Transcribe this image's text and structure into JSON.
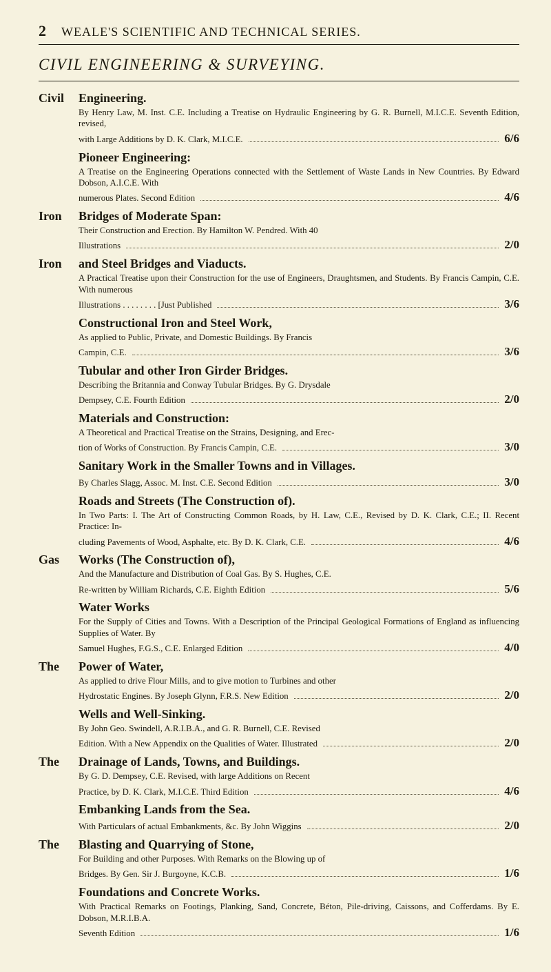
{
  "page_number": "2",
  "running_head": "WEALE'S SCIENTIFIC AND TECHNICAL SERIES.",
  "section_heading": "CIVIL ENGINEERING & SURVEYING.",
  "entries": [
    {
      "lead": "Civil",
      "title": "Engineering.",
      "desc_pre": "By Henry Law, M. Inst. C.E. Including a Treatise on Hydraulic Engineering by G. R. Burnell, M.I.C.E. Seventh Edition, revised,",
      "desc_last": "with Large Additions by D. K. Clark, M.I.C.E.",
      "price": "6/6"
    },
    {
      "lead": "",
      "title": "Pioneer Engineering:",
      "desc_pre": "A Treatise on the Engineering Operations connected with the Settlement of Waste Lands in New Countries. By Edward Dobson, A.I.C.E. With",
      "desc_last": "numerous Plates. Second Edition",
      "price": "4/6"
    },
    {
      "lead": "Iron",
      "title": "Bridges of Moderate Span:",
      "desc_pre": "Their Construction and Erection. By Hamilton W. Pendred. With 40",
      "desc_last": "Illustrations",
      "price": "2/0"
    },
    {
      "lead": "Iron",
      "title": "and Steel Bridges and Viaducts.",
      "desc_pre": "A Practical Treatise upon their Construction for the use of Engineers, Draughtsmen, and Students. By Francis Campin, C.E. With numerous",
      "desc_last": "Illustrations . . . . . . . . [Just Published",
      "price": "3/6"
    },
    {
      "lead": "",
      "title": "Constructional Iron and Steel Work,",
      "desc_pre": "As applied to Public, Private, and Domestic Buildings. By Francis",
      "desc_last": "Campin, C.E.",
      "price": "3/6"
    },
    {
      "lead": "",
      "title": "Tubular and other Iron Girder Bridges.",
      "desc_pre": "Describing the Britannia and Conway Tubular Bridges. By G. Drysdale",
      "desc_last": "Dempsey, C.E. Fourth Edition",
      "price": "2/0"
    },
    {
      "lead": "",
      "title": "Materials and Construction:",
      "desc_pre": "A Theoretical and Practical Treatise on the Strains, Designing, and Erec-",
      "desc_last": "tion of Works of Construction. By Francis Campin, C.E.",
      "price": "3/0"
    },
    {
      "lead": "",
      "title": "Sanitary Work in the Smaller Towns and in Villages.",
      "desc_pre": "",
      "desc_last": "By Charles Slagg, Assoc. M. Inst. C.E. Second Edition",
      "price": "3/0"
    },
    {
      "lead": "",
      "title": "Roads and Streets (The Construction of).",
      "desc_pre": "In Two Parts: I. The Art of Constructing Common Roads, by H. Law, C.E., Revised by D. K. Clark, C.E.; II. Recent Practice: In-",
      "desc_last": "cluding Pavements of Wood, Asphalte, etc. By D. K. Clark, C.E.",
      "price": "4/6"
    },
    {
      "lead": "Gas",
      "title": "Works (The Construction of),",
      "desc_pre": "And the Manufacture and Distribution of Coal Gas. By S. Hughes, C.E.",
      "desc_last": "Re-written by William Richards, C.E. Eighth Edition",
      "price": "5/6"
    },
    {
      "lead": "",
      "title": "Water Works",
      "desc_pre": "For the Supply of Cities and Towns. With a Description of the Principal Geological Formations of England as influencing Supplies of Water. By",
      "desc_last": "Samuel Hughes, F.G.S., C.E. Enlarged Edition",
      "price": "4/0"
    },
    {
      "lead": "The",
      "title": "Power of Water,",
      "desc_pre": "As applied to drive Flour Mills, and to give motion to Turbines and other",
      "desc_last": "Hydrostatic Engines. By Joseph Glynn, F.R.S. New Edition",
      "price": "2/0"
    },
    {
      "lead": "",
      "title": "Wells and Well-Sinking.",
      "desc_pre": "By John Geo. Swindell, A.R.I.B.A., and G. R. Burnell, C.E. Revised",
      "desc_last": "Edition. With a New Appendix on the Qualities of Water. Illustrated",
      "price": "2/0"
    },
    {
      "lead": "The",
      "title": "Drainage of Lands, Towns, and Buildings.",
      "desc_pre": "By G. D. Dempsey, C.E. Revised, with large Additions on Recent",
      "desc_last": "Practice, by D. K. Clark, M.I.C.E. Third Edition",
      "price": "4/6"
    },
    {
      "lead": "",
      "title": "Embanking Lands from the Sea.",
      "desc_pre": "",
      "desc_last": "With Particulars of actual Embankments, &c. By John Wiggins",
      "price": "2/0"
    },
    {
      "lead": "The",
      "title": "Blasting and Quarrying of Stone,",
      "desc_pre": "For Building and other Purposes. With Remarks on the Blowing up of",
      "desc_last": "Bridges. By Gen. Sir J. Burgoyne, K.C.B.",
      "price": "1/6"
    },
    {
      "lead": "",
      "title": "Foundations and Concrete Works.",
      "desc_pre": "With Practical Remarks on Footings, Planking, Sand, Concrete, Béton, Pile-driving, Caissons, and Cofferdams. By E. Dobson, M.R.I.B.A.",
      "desc_last": "Seventh Edition",
      "price": "1/6"
    }
  ]
}
